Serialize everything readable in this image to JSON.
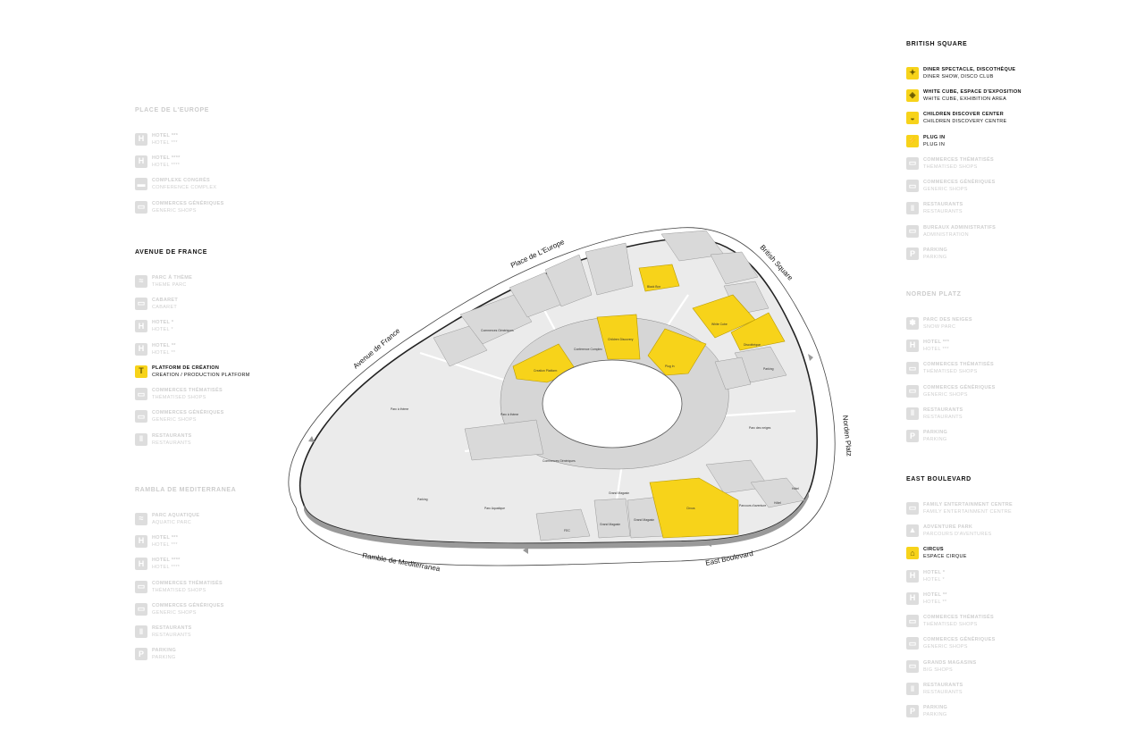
{
  "legend_groups": [
    {
      "title": "PLACE DE L'EUROPE",
      "muted": true,
      "items": [
        {
          "icon": "hotel-icon",
          "glyph": "H",
          "label": "HOTEL ***",
          "sub": "HOTEL ***",
          "active": false
        },
        {
          "icon": "hotel-icon",
          "glyph": "H",
          "label": "HOTEL ****",
          "sub": "HOTEL ****",
          "active": false
        },
        {
          "icon": "conference-icon",
          "glyph": "▬",
          "label": "COMPLEXE CONGRÈS",
          "sub": "CONFERENCE COMPLEX",
          "active": false
        },
        {
          "icon": "shop-icon",
          "glyph": "▭",
          "label": "COMMERCES GÉNÉRIQUES",
          "sub": "GENERIC SHOPS",
          "active": false
        }
      ]
    },
    {
      "title": "AVENUE DE FRANCE",
      "muted": false,
      "items": [
        {
          "icon": "theme-park-icon",
          "glyph": "≈",
          "label": "PARC À THÈME",
          "sub": "THEME PARC",
          "active": false
        },
        {
          "icon": "cabaret-icon",
          "glyph": "▭",
          "label": "CABARET",
          "sub": "CABARET",
          "active": false
        },
        {
          "icon": "hotel-icon",
          "glyph": "H",
          "label": "HOTEL *",
          "sub": "HOTEL *",
          "active": false
        },
        {
          "icon": "hotel-icon",
          "glyph": "H",
          "label": "HOTEL **",
          "sub": "HOTEL **",
          "active": false
        },
        {
          "icon": "creation-platform-icon",
          "glyph": "T",
          "label": "PLATFORM DE CRÉATION",
          "sub": "CREATION / PRODUCTION PLATFORM",
          "active": true
        },
        {
          "icon": "themed-shop-icon",
          "glyph": "▭",
          "label": "COMMERCES THÉMATISÉS",
          "sub": "THÉMATISED SHOPS",
          "active": false
        },
        {
          "icon": "shop-icon",
          "glyph": "▭",
          "label": "COMMERCES GÉNÉRIQUES",
          "sub": "GENERIC SHOPS",
          "active": false
        },
        {
          "icon": "restaurant-icon",
          "glyph": "‖",
          "label": "RESTAURANTS",
          "sub": "RESTAURANTS",
          "active": false
        }
      ]
    },
    {
      "title": "RAMBLA DE MEDITERRANEA",
      "muted": true,
      "items": [
        {
          "icon": "aquatic-park-icon",
          "glyph": "≈",
          "label": "PARC AQUATIQUE",
          "sub": "AQUATIC PARC",
          "active": false
        },
        {
          "icon": "hotel-icon",
          "glyph": "H",
          "label": "HOTEL ***",
          "sub": "HOTEL ***",
          "active": false
        },
        {
          "icon": "hotel-icon",
          "glyph": "H",
          "label": "HOTEL ****",
          "sub": "HOTEL ****",
          "active": false
        },
        {
          "icon": "themed-shop-icon",
          "glyph": "▭",
          "label": "COMMERCES THÉMATISÉS",
          "sub": "THÉMATISED SHOPS",
          "active": false
        },
        {
          "icon": "shop-icon",
          "glyph": "▭",
          "label": "COMMERCES GÉNÉRIQUES",
          "sub": "GENERIC SHOPS",
          "active": false
        },
        {
          "icon": "restaurant-icon",
          "glyph": "‖",
          "label": "RESTAURANTS",
          "sub": "RESTAURANTS",
          "active": false
        },
        {
          "icon": "parking-icon",
          "glyph": "P",
          "label": "PARKING",
          "sub": "PARKING",
          "active": false
        }
      ]
    },
    {
      "title": "BRITISH SQUARE",
      "muted": false,
      "items": [
        {
          "icon": "diner-show-icon",
          "glyph": "✦",
          "label": "DINER SPECTACLE, DISCOTHÈQUE",
          "sub": "DINER SHOW, DISCO CLUB",
          "active": true
        },
        {
          "icon": "white-cube-icon",
          "glyph": "◈",
          "label": "WHITE CUBE, ESPACE D'EXPOSITION",
          "sub": "WHITE CUBE, EXHIBITION AREA",
          "active": true
        },
        {
          "icon": "children-discovery-icon",
          "glyph": "◒",
          "label": "CHILDREN DISCOVER CENTER",
          "sub": "CHILDREN DISCOVERY CENTRE",
          "active": true
        },
        {
          "icon": "plug-in-icon",
          "glyph": "⚡",
          "label": "PLUG IN",
          "sub": "PLUG IN",
          "active": true
        },
        {
          "icon": "themed-shop-icon",
          "glyph": "▭",
          "label": "COMMERCES THÉMATISÉS",
          "sub": "THÉMATISED SHOPS",
          "active": false
        },
        {
          "icon": "shop-icon",
          "glyph": "▭",
          "label": "COMMERCES GÉNÉRIQUES",
          "sub": "GENERIC SHOPS",
          "active": false
        },
        {
          "icon": "restaurant-icon",
          "glyph": "‖",
          "label": "RESTAURANTS",
          "sub": "RESTAURANTS",
          "active": false
        },
        {
          "icon": "office-icon",
          "glyph": "▭",
          "label": "BUREAUX ADMINISTRATIFS",
          "sub": "ADMINISTRATION",
          "active": false
        },
        {
          "icon": "parking-icon",
          "glyph": "P",
          "label": "PARKING",
          "sub": "PARKING",
          "active": false
        }
      ]
    },
    {
      "title": "NORDEN PLATZ",
      "muted": true,
      "items": [
        {
          "icon": "snow-park-icon",
          "glyph": "✽",
          "label": "PARC DES NEIGES",
          "sub": "SNOW PARC",
          "active": false
        },
        {
          "icon": "hotel-icon",
          "glyph": "H",
          "label": "HOTEL ***",
          "sub": "HOTEL ***",
          "active": false
        },
        {
          "icon": "themed-shop-icon",
          "glyph": "▭",
          "label": "COMMERCES THÉMATISÉS",
          "sub": "THÉMATISED SHOPS",
          "active": false
        },
        {
          "icon": "shop-icon",
          "glyph": "▭",
          "label": "COMMERCES GÉNÉRIQUES",
          "sub": "GENERIC SHOPS",
          "active": false
        },
        {
          "icon": "restaurant-icon",
          "glyph": "‖",
          "label": "RESTAURANTS",
          "sub": "RESTAURANTS",
          "active": false
        },
        {
          "icon": "parking-icon",
          "glyph": "P",
          "label": "PARKING",
          "sub": "PARKING",
          "active": false
        }
      ]
    },
    {
      "title": "EAST BOULEVARD",
      "muted": false,
      "items": [
        {
          "icon": "family-center-icon",
          "glyph": "▭",
          "label": "FAMILY ENTERTAINMENT CENTRE",
          "sub": "FAMILY ENTERTAINMENT CENTRE",
          "active": false
        },
        {
          "icon": "adventure-park-icon",
          "glyph": "▲",
          "label": "ADVENTURE PARK",
          "sub": "PARCOURS D'AVENTURES",
          "active": false
        },
        {
          "icon": "circus-icon",
          "glyph": "⌂",
          "label": "CIRCUS",
          "sub": "ESPACE CIRQUE",
          "active": true
        },
        {
          "icon": "hotel-icon",
          "glyph": "H",
          "label": "HOTEL *",
          "sub": "HOTEL *",
          "active": false
        },
        {
          "icon": "hotel-icon",
          "glyph": "H",
          "label": "HOTEL **",
          "sub": "HOTEL **",
          "active": false
        },
        {
          "icon": "themed-shop-icon",
          "glyph": "▭",
          "label": "COMMERCES THÉMATISÉS",
          "sub": "THÉMATISED SHOPS",
          "active": false
        },
        {
          "icon": "shop-icon",
          "glyph": "▭",
          "label": "COMMERCES GÉNÉRIQUES",
          "sub": "GENERIC SHOPS",
          "active": false
        },
        {
          "icon": "big-shop-icon",
          "glyph": "▭",
          "label": "GRANDS MAGASINS",
          "sub": "BIG SHOPS",
          "active": false
        },
        {
          "icon": "restaurant-icon",
          "glyph": "‖",
          "label": "RESTAURANTS",
          "sub": "RESTAURANTS",
          "active": false
        },
        {
          "icon": "parking-icon",
          "glyph": "P",
          "label": "PARKING",
          "sub": "PARKING",
          "active": false
        }
      ]
    }
  ],
  "streets": {
    "avenue_de_france": "Avenue de France",
    "place_de_leurope": "Place de L'Europe",
    "british_square": "British Square",
    "norden_platz": "Norden Platz",
    "east_boulevard": "East Boulevard",
    "ramble_de_mediterranea": "Ramble de Mediterranea"
  },
  "zones": {
    "black_box": "Black Box",
    "white_cube": "White Cube",
    "discotheque": "Discothèque",
    "children_discovery": "Children Discovery",
    "plug_in": "Plug In",
    "creation_platform": "Creation Platform",
    "conference_complex": "Conference Complex",
    "commerces_generiques": "Commerces Génériques",
    "commerces_generiques_2": "Commerces Génériques",
    "parc_a_theme": "Parc à thème",
    "parc_a_theme_2": "Parc à thème",
    "parc_des_neiges": "Parc des neiges",
    "parking_1": "Parking",
    "parking_2": "Parking",
    "parc_aquatique": "Parc Aquatique",
    "grand_magasin_1": "Grand Magasin",
    "grand_magasin_2": "Grand Magasin",
    "grand_magasin_3": "Grand Magasin",
    "fec": "FEC",
    "circus": "Circus",
    "parcours_aventure": "Parcours d'aventure",
    "hotel_1": "Hôtel",
    "hotel_2": "Hôtel"
  },
  "colors": {
    "highlight": "#f7d31a",
    "building": "#d9d9d9",
    "ground": "#ebebeb",
    "muted_text": "#cfcfcf"
  }
}
